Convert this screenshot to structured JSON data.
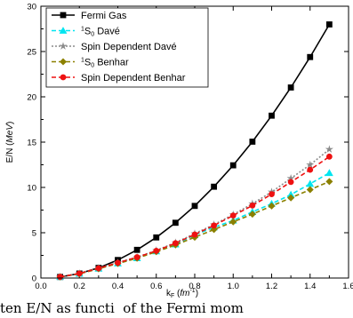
{
  "chart_data": {
    "type": "line",
    "xlabel": "k_F (fm^-1)",
    "ylabel": "E/N (MeV)",
    "xlim": [
      0.0,
      1.6
    ],
    "ylim": [
      0,
      30
    ],
    "xticks": [
      0.0,
      0.2,
      0.4,
      0.6,
      0.8,
      1.0,
      1.2,
      1.4,
      1.6
    ],
    "yticks": [
      0,
      5,
      10,
      15,
      20,
      25,
      30
    ],
    "xtick_labels": [
      "0.0",
      "0.2",
      "0.4",
      "0.6",
      "0.8",
      "1.0",
      "1.2",
      "1.4",
      "1.6"
    ],
    "ytick_labels": [
      "0",
      "5",
      "10",
      "15",
      "20",
      "25",
      "30"
    ],
    "legend_position": "top-left",
    "grid": false,
    "x": [
      0.1,
      0.2,
      0.3,
      0.4,
      0.5,
      0.6,
      0.7,
      0.8,
      0.9,
      1.0,
      1.1,
      1.2,
      1.3,
      1.4,
      1.5
    ],
    "series": [
      {
        "name": "Fermi Gas",
        "color": "#000000",
        "marker": "square",
        "dash": "solid",
        "values": [
          0.12,
          0.5,
          1.12,
          1.99,
          3.11,
          4.48,
          6.1,
          7.96,
          10.08,
          12.44,
          15.05,
          17.92,
          21.03,
          24.39,
          27.99
        ]
      },
      {
        "name": "1S0 Davé",
        "legend_sup": "1",
        "legend_base": "S",
        "legend_sub": "0",
        "legend_suffix": " Davé",
        "color": "#00e5f0",
        "marker": "triangle",
        "dash": "dash",
        "values": [
          0.12,
          0.48,
          1.05,
          1.62,
          2.2,
          2.95,
          3.72,
          4.75,
          5.6,
          6.35,
          7.3,
          8.2,
          9.2,
          10.4,
          11.6
        ]
      },
      {
        "name": "Spin Dependent Davé",
        "color": "#8a8a8a",
        "marker": "star",
        "dash": "dot",
        "values": [
          0.13,
          0.5,
          1.1,
          1.7,
          2.3,
          3.05,
          3.9,
          4.9,
          5.9,
          7.0,
          8.2,
          9.5,
          11.0,
          12.5,
          14.2
        ]
      },
      {
        "name": "1S0 Benhar",
        "legend_sup": "1",
        "legend_base": "S",
        "legend_sub": "0",
        "legend_suffix": " Benhar",
        "color": "#8b8000",
        "marker": "diamond",
        "dash": "dash",
        "values": [
          0.12,
          0.47,
          1.02,
          1.6,
          2.18,
          2.9,
          3.65,
          4.5,
          5.35,
          6.2,
          7.05,
          7.95,
          8.85,
          9.75,
          10.65
        ]
      },
      {
        "name": "Spin Dependent Benhar",
        "color": "#ee1111",
        "marker": "circle",
        "dash": "dash",
        "values": [
          0.13,
          0.5,
          1.08,
          1.68,
          2.3,
          3.0,
          3.85,
          4.8,
          5.8,
          6.9,
          8.0,
          9.25,
          10.6,
          11.95,
          13.4
        ]
      }
    ]
  },
  "caption_text": "ten  E/N   as  functi   of the Fermi mom"
}
